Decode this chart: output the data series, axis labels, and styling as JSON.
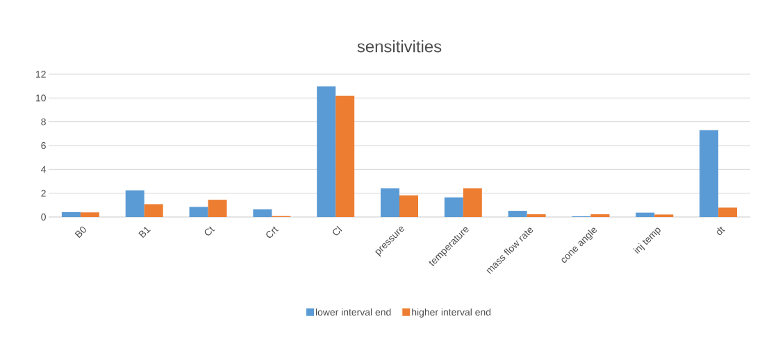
{
  "chart_data": {
    "type": "bar",
    "title": "sensitivities",
    "categories": [
      "B0",
      "B1",
      "Ct",
      "Crt",
      "Cl",
      "pressure",
      "temperature",
      "mass flow rate",
      "cone angle",
      "inj temp",
      "dt"
    ],
    "series": [
      {
        "name": "lower interval end",
        "color": "#5b9bd5",
        "values": [
          0.41,
          2.24,
          0.85,
          0.64,
          10.98,
          2.42,
          1.65,
          0.52,
          0.06,
          0.37,
          7.29
        ]
      },
      {
        "name": "higher interval end",
        "color": "#ed7d31",
        "values": [
          0.39,
          1.08,
          1.45,
          0.08,
          10.2,
          1.82,
          2.42,
          0.23,
          0.23,
          0.21,
          0.79
        ]
      }
    ],
    "ylim": [
      0,
      12
    ],
    "yticks": [
      0,
      2,
      4,
      6,
      8,
      10,
      12
    ],
    "grid": "y",
    "legend": "bottom"
  }
}
